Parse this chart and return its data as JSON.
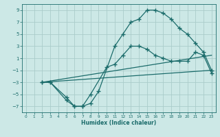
{
  "xlabel": "Humidex (Indice chaleur)",
  "bg_color": "#cce8e6",
  "grid_color": "#aaccca",
  "line_color": "#1a6b6a",
  "xlim": [
    -0.5,
    23.5
  ],
  "ylim": [
    -8,
    10
  ],
  "xticks": [
    0,
    1,
    2,
    3,
    4,
    5,
    6,
    7,
    8,
    9,
    10,
    11,
    12,
    13,
    14,
    15,
    16,
    17,
    18,
    19,
    20,
    21,
    22,
    23
  ],
  "yticks": [
    -7,
    -5,
    -3,
    -1,
    1,
    3,
    5,
    7,
    9
  ],
  "line1_x": [
    2,
    3,
    5,
    6,
    7,
    8,
    9,
    11,
    12,
    13,
    14,
    15,
    16,
    17,
    18,
    19,
    20,
    21,
    22,
    23
  ],
  "line1_y": [
    -3,
    -3,
    -6,
    -7,
    -7,
    -6.5,
    -4.5,
    3,
    5,
    7,
    7.5,
    9,
    9,
    8.5,
    7.5,
    6,
    5,
    3.5,
    2,
    -1
  ],
  "line2_x": [
    2,
    3,
    5,
    6,
    7,
    8,
    10,
    11,
    12,
    13,
    14,
    15,
    16,
    17,
    18,
    19,
    20,
    21,
    22,
    23
  ],
  "line2_y": [
    -3,
    -3,
    -5.5,
    -7,
    -7,
    -5,
    -0.5,
    0,
    1.5,
    3,
    3,
    2.5,
    1.5,
    1,
    0.5,
    0.5,
    0.5,
    2,
    1.5,
    -1.5
  ],
  "line3_x": [
    2,
    23
  ],
  "line3_y": [
    -3,
    1.5
  ],
  "line4_x": [
    2,
    23
  ],
  "line4_y": [
    -3,
    -1
  ],
  "marker": "+",
  "markersize": 4,
  "linewidth": 0.9
}
